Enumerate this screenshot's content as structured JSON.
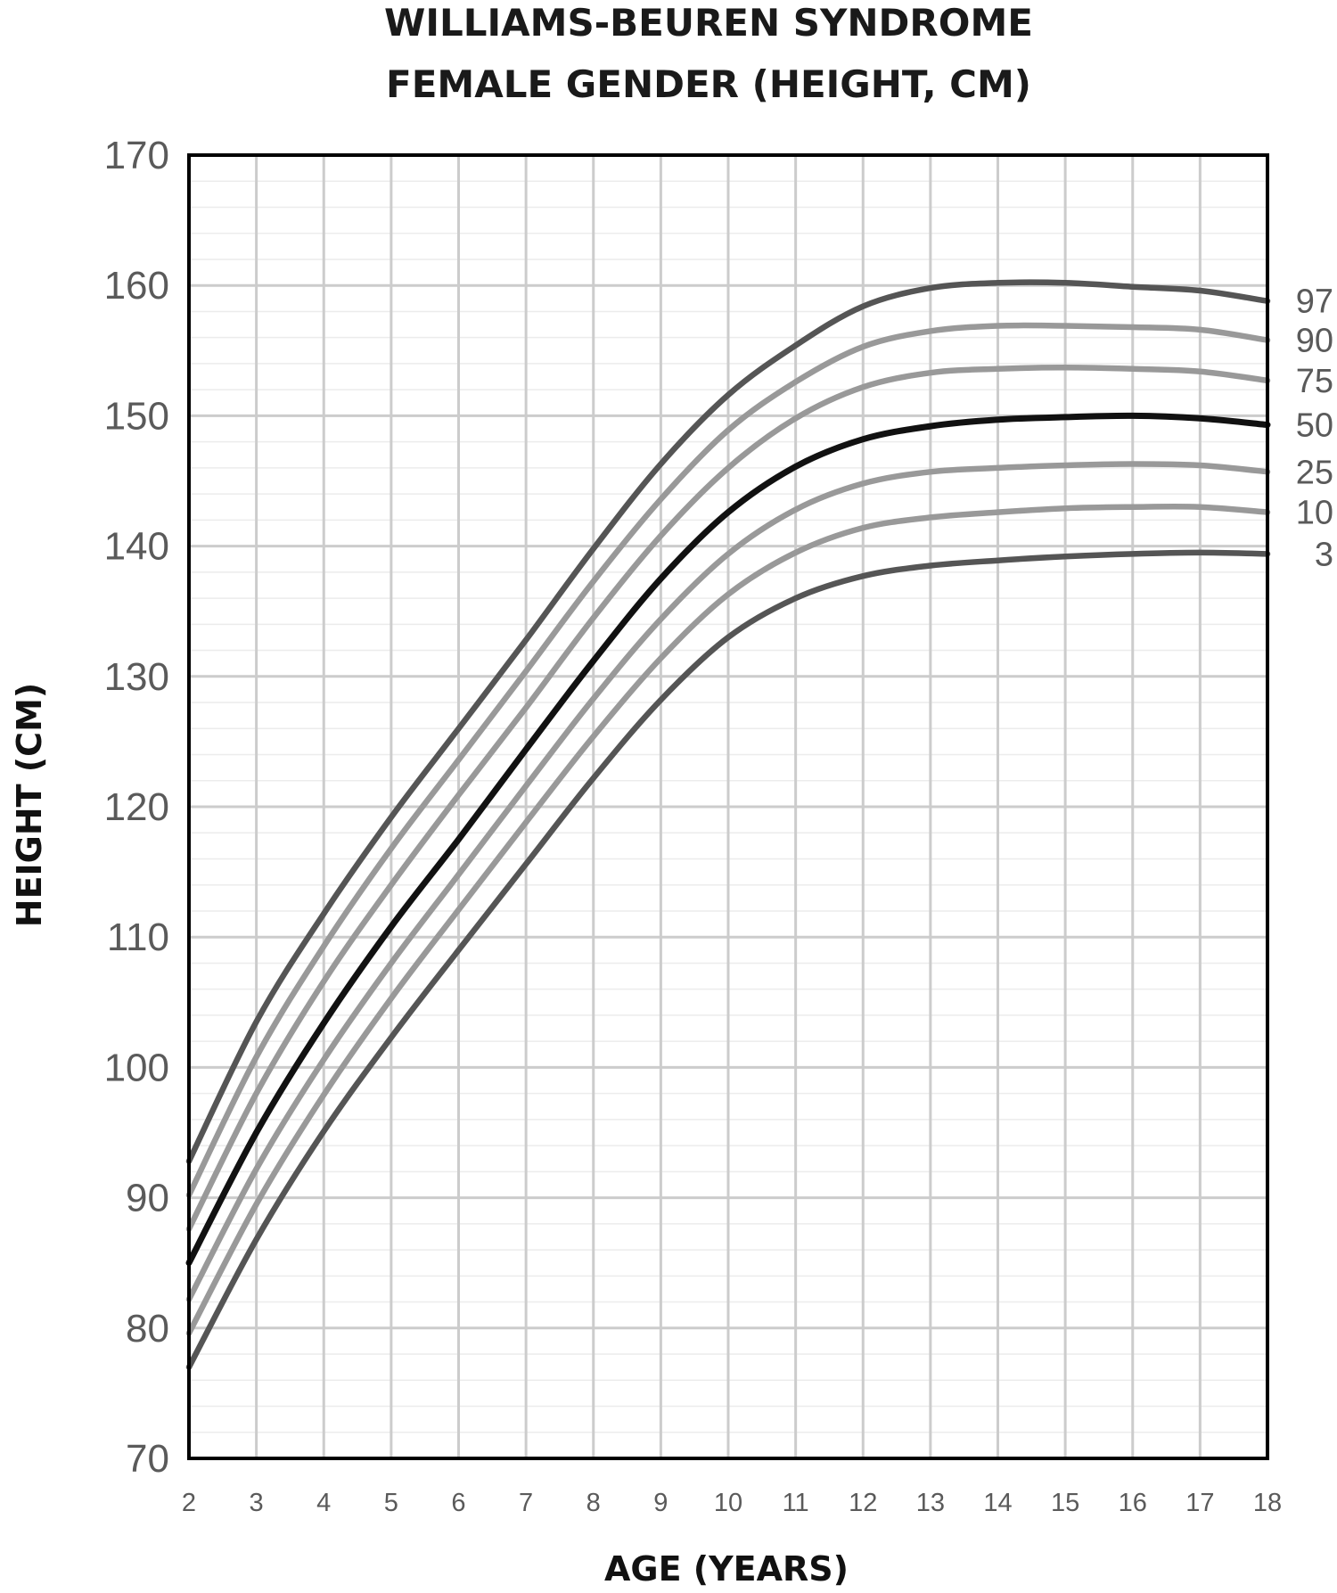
{
  "chart_data": {
    "type": "line",
    "title": [
      "WILLIAMS-BEUREN SYNDROME",
      "FEMALE GENDER (HEIGHT, CM)"
    ],
    "xlabel": "AGE (YEARS)",
    "ylabel": "HEIGHT (CM)",
    "xlim": [
      2,
      18
    ],
    "ylim": [
      70,
      170
    ],
    "x_ticks": [
      2,
      3,
      4,
      5,
      6,
      7,
      8,
      9,
      10,
      11,
      12,
      13,
      14,
      15,
      16,
      17,
      18
    ],
    "y_ticks": [
      70,
      80,
      90,
      100,
      110,
      120,
      130,
      140,
      150,
      160,
      170
    ],
    "grid": true,
    "x": [
      2,
      3,
      4,
      5,
      6,
      7,
      8,
      9,
      10,
      11,
      12,
      13,
      14,
      15,
      16,
      17,
      18
    ],
    "series": [
      {
        "name": "97",
        "color": "#555555",
        "values": [
          92.8,
          103.5,
          111.8,
          119.2,
          126.0,
          132.8,
          139.8,
          146.3,
          151.6,
          155.4,
          158.4,
          159.8,
          160.2,
          160.2,
          159.9,
          159.6,
          158.8
        ]
      },
      {
        "name": "90",
        "color": "#999999",
        "values": [
          90.2,
          100.8,
          109.3,
          116.8,
          123.6,
          130.4,
          137.3,
          143.6,
          148.9,
          152.6,
          155.3,
          156.5,
          156.9,
          156.9,
          156.8,
          156.6,
          155.8
        ]
      },
      {
        "name": "75",
        "color": "#999999",
        "values": [
          87.6,
          98.0,
          106.6,
          114.0,
          120.9,
          127.6,
          134.5,
          140.8,
          146.0,
          149.8,
          152.2,
          153.3,
          153.6,
          153.7,
          153.6,
          153.4,
          152.7
        ]
      },
      {
        "name": "50",
        "color": "#111111",
        "values": [
          85.0,
          95.0,
          103.4,
          110.8,
          117.5,
          124.4,
          131.2,
          137.5,
          142.6,
          146.1,
          148.2,
          149.2,
          149.7,
          149.9,
          150.0,
          149.8,
          149.3
        ]
      },
      {
        "name": "25",
        "color": "#999999",
        "values": [
          82.2,
          92.2,
          100.6,
          108.0,
          114.8,
          121.6,
          128.3,
          134.4,
          139.4,
          142.8,
          144.8,
          145.7,
          146.0,
          146.2,
          146.3,
          146.2,
          145.7
        ]
      },
      {
        "name": "10",
        "color": "#999999",
        "values": [
          79.6,
          89.5,
          97.9,
          105.3,
          112.1,
          118.8,
          125.4,
          131.4,
          136.3,
          139.5,
          141.4,
          142.2,
          142.6,
          142.9,
          143.0,
          143.0,
          142.6
        ]
      },
      {
        "name": "3",
        "color": "#555555",
        "values": [
          77.0,
          86.8,
          95.1,
          102.3,
          109.0,
          115.6,
          122.2,
          128.2,
          133.0,
          136.0,
          137.7,
          138.5,
          138.9,
          139.2,
          139.4,
          139.5,
          139.4
        ]
      }
    ]
  }
}
